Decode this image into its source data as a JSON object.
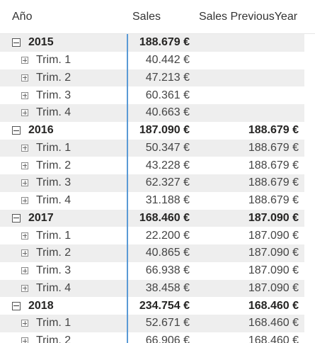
{
  "columns": {
    "year": "Año",
    "sales": "Sales",
    "prev": "Sales PreviousYear"
  },
  "rows": [
    {
      "type": "year",
      "label": "2015",
      "sales": "188.679 €",
      "prev": ""
    },
    {
      "type": "quarter",
      "label": "Trim. 1",
      "sales": "40.442 €",
      "prev": ""
    },
    {
      "type": "quarter",
      "label": "Trim. 2",
      "sales": "47.213 €",
      "prev": ""
    },
    {
      "type": "quarter",
      "label": "Trim. 3",
      "sales": "60.361 €",
      "prev": ""
    },
    {
      "type": "quarter",
      "label": "Trim. 4",
      "sales": "40.663 €",
      "prev": ""
    },
    {
      "type": "year",
      "label": "2016",
      "sales": "187.090 €",
      "prev": "188.679 €"
    },
    {
      "type": "quarter",
      "label": "Trim. 1",
      "sales": "50.347 €",
      "prev": "188.679 €"
    },
    {
      "type": "quarter",
      "label": "Trim. 2",
      "sales": "43.228 €",
      "prev": "188.679 €"
    },
    {
      "type": "quarter",
      "label": "Trim. 3",
      "sales": "62.327 €",
      "prev": "188.679 €"
    },
    {
      "type": "quarter",
      "label": "Trim. 4",
      "sales": "31.188 €",
      "prev": "188.679 €"
    },
    {
      "type": "year",
      "label": "2017",
      "sales": "168.460 €",
      "prev": "187.090 €"
    },
    {
      "type": "quarter",
      "label": "Trim. 1",
      "sales": "22.200 €",
      "prev": "187.090 €"
    },
    {
      "type": "quarter",
      "label": "Trim. 2",
      "sales": "40.865 €",
      "prev": "187.090 €"
    },
    {
      "type": "quarter",
      "label": "Trim. 3",
      "sales": "66.938 €",
      "prev": "187.090 €"
    },
    {
      "type": "quarter",
      "label": "Trim. 4",
      "sales": "38.458 €",
      "prev": "187.090 €"
    },
    {
      "type": "year",
      "label": "2018",
      "sales": "234.754 €",
      "prev": "168.460 €"
    },
    {
      "type": "quarter",
      "label": "Trim. 1",
      "sales": "52.671 €",
      "prev": "168.460 €"
    },
    {
      "type": "quarter",
      "label": "Trim. 2",
      "sales": "66.906 €",
      "prev": "168.460 €"
    }
  ],
  "colors": {
    "divider": "#5a9ad5",
    "shade": "#eeeeee"
  }
}
